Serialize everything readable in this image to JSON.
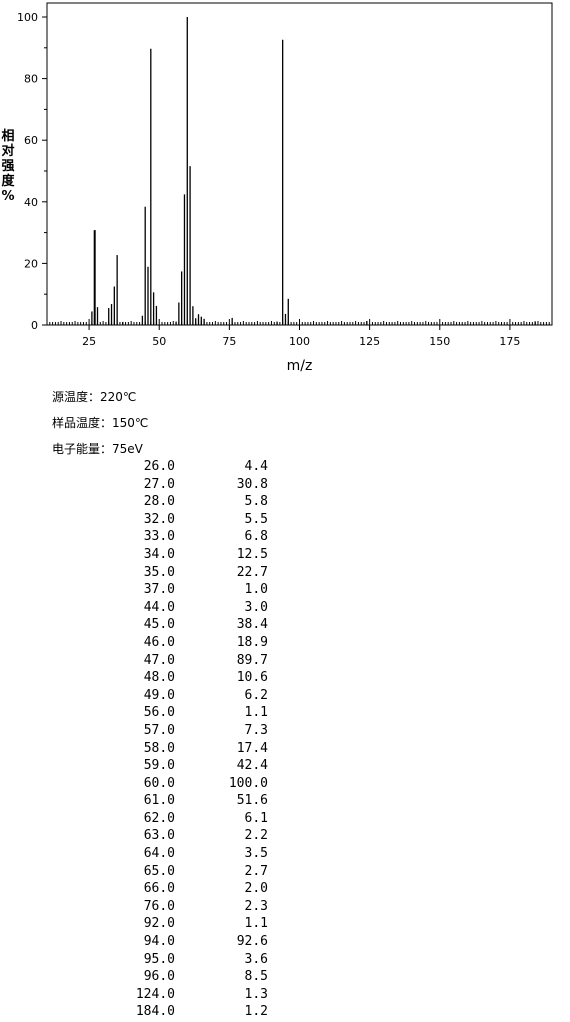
{
  "chart_data": {
    "type": "bar",
    "xlabel": "m/z",
    "ylabel": "相对强度%",
    "xlim": [
      10,
      190
    ],
    "ylim": [
      0,
      100
    ],
    "xticks": [
      25,
      50,
      75,
      100,
      125,
      150,
      175
    ],
    "yticks": [
      0,
      20,
      40,
      60,
      80,
      100
    ],
    "grid": false,
    "series": [
      {
        "x": [
          26,
          27,
          28,
          32,
          33,
          34,
          35,
          37,
          44,
          45,
          46,
          47,
          48,
          49,
          56,
          57,
          58,
          59,
          60,
          61,
          62,
          63,
          64,
          65,
          66,
          76,
          92,
          94,
          95,
          96,
          124,
          184
        ],
        "values": [
          4.4,
          30.8,
          5.8,
          5.5,
          6.8,
          12.5,
          22.7,
          1.0,
          3.0,
          38.4,
          18.9,
          89.7,
          10.6,
          6.2,
          1.1,
          7.3,
          17.4,
          42.4,
          100.0,
          51.6,
          6.1,
          2.2,
          3.5,
          2.7,
          2.0,
          2.3,
          1.1,
          92.6,
          3.6,
          8.5,
          1.3,
          1.2
        ]
      }
    ]
  },
  "info": {
    "source_temp": "源温度：220℃",
    "sample_temp": "样品温度：150℃",
    "electron_energy": "电子能量：75eV"
  },
  "peaks": [
    {
      "mz": "26.0",
      "intensity": "4.4"
    },
    {
      "mz": "27.0",
      "intensity": "30.8"
    },
    {
      "mz": "28.0",
      "intensity": "5.8"
    },
    {
      "mz": "32.0",
      "intensity": "5.5"
    },
    {
      "mz": "33.0",
      "intensity": "6.8"
    },
    {
      "mz": "34.0",
      "intensity": "12.5"
    },
    {
      "mz": "35.0",
      "intensity": "22.7"
    },
    {
      "mz": "37.0",
      "intensity": "1.0"
    },
    {
      "mz": "44.0",
      "intensity": "3.0"
    },
    {
      "mz": "45.0",
      "intensity": "38.4"
    },
    {
      "mz": "46.0",
      "intensity": "18.9"
    },
    {
      "mz": "47.0",
      "intensity": "89.7"
    },
    {
      "mz": "48.0",
      "intensity": "10.6"
    },
    {
      "mz": "49.0",
      "intensity": "6.2"
    },
    {
      "mz": "56.0",
      "intensity": "1.1"
    },
    {
      "mz": "57.0",
      "intensity": "7.3"
    },
    {
      "mz": "58.0",
      "intensity": "17.4"
    },
    {
      "mz": "59.0",
      "intensity": "42.4"
    },
    {
      "mz": "60.0",
      "intensity": "100.0"
    },
    {
      "mz": "61.0",
      "intensity": "51.6"
    },
    {
      "mz": "62.0",
      "intensity": "6.1"
    },
    {
      "mz": "63.0",
      "intensity": "2.2"
    },
    {
      "mz": "64.0",
      "intensity": "3.5"
    },
    {
      "mz": "65.0",
      "intensity": "2.7"
    },
    {
      "mz": "66.0",
      "intensity": "2.0"
    },
    {
      "mz": "76.0",
      "intensity": "2.3"
    },
    {
      "mz": "92.0",
      "intensity": "1.1"
    },
    {
      "mz": "94.0",
      "intensity": "92.6"
    },
    {
      "mz": "95.0",
      "intensity": "3.6"
    },
    {
      "mz": "96.0",
      "intensity": "8.5"
    },
    {
      "mz": "124.0",
      "intensity": "1.3"
    },
    {
      "mz": "184.0",
      "intensity": "1.2"
    }
  ]
}
